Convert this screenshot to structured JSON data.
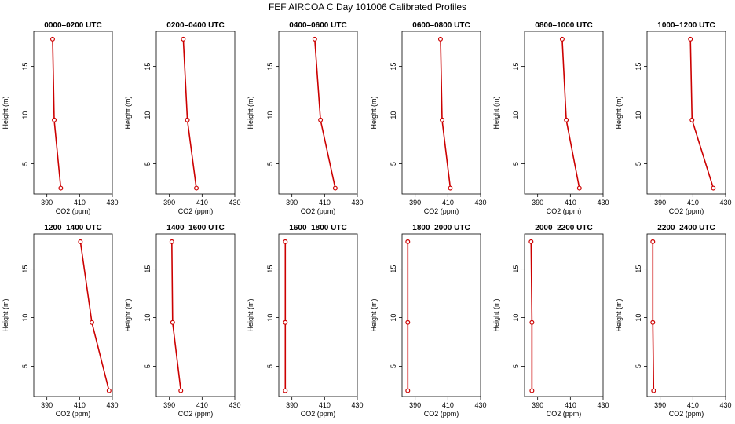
{
  "title": "FEF AIRCOA C  Day 101006  Calibrated Profiles",
  "chart_data": {
    "type": "line",
    "title": "FEF AIRCOA C  Day 101006  Calibrated Profiles",
    "xlabel": "CO2 (ppm)",
    "ylabel": "Height (m)",
    "xlim": [
      382,
      430
    ],
    "ylim": [
      1.9,
      18.6
    ],
    "xticks": [
      390,
      410,
      430
    ],
    "xtick_labels": [
      "390",
      "410",
      "430"
    ],
    "yticks": [
      5,
      10,
      15
    ],
    "ytick_labels": [
      "5",
      "10",
      "15"
    ],
    "heights": [
      17.8,
      9.5,
      2.5
    ],
    "panels": [
      {
        "title": "0000–0200 UTC",
        "co2": [
          393.5,
          394.5,
          398.5
        ]
      },
      {
        "title": "0200–0400 UTC",
        "co2": [
          398.5,
          401.0,
          406.5
        ]
      },
      {
        "title": "0400–0600 UTC",
        "co2": [
          404.0,
          407.5,
          416.5
        ]
      },
      {
        "title": "0600–0800 UTC",
        "co2": [
          405.5,
          406.5,
          411.5
        ]
      },
      {
        "title": "0800–1000 UTC",
        "co2": [
          405.0,
          407.5,
          415.5
        ]
      },
      {
        "title": "1000–1200 UTC",
        "co2": [
          408.5,
          409.5,
          422.5
        ]
      },
      {
        "title": "1200–1400 UTC",
        "co2": [
          410.5,
          417.5,
          428.0
        ]
      },
      {
        "title": "1400–1600 UTC",
        "co2": [
          391.5,
          392.0,
          397.0
        ]
      },
      {
        "title": "1600–1800 UTC",
        "co2": [
          386.0,
          386.0,
          386.0
        ]
      },
      {
        "title": "1800–2000 UTC",
        "co2": [
          385.5,
          385.5,
          385.5
        ]
      },
      {
        "title": "2000–2200 UTC",
        "co2": [
          386.0,
          386.5,
          386.5
        ]
      },
      {
        "title": "2200–2400 UTC",
        "co2": [
          385.5,
          385.5,
          386.0
        ]
      }
    ]
  }
}
